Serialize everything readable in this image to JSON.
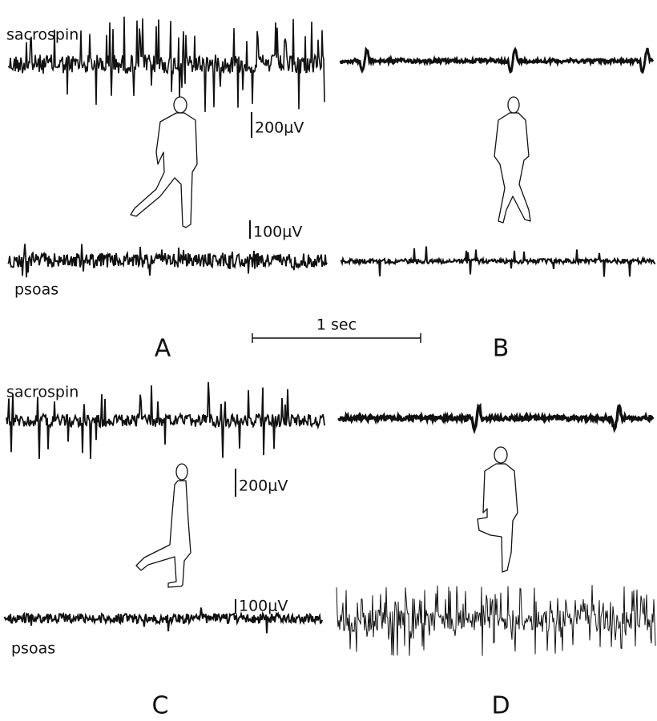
{
  "panels": [
    {
      "label": "A",
      "top_muscle": "sacrospin",
      "bottom_muscle": "psoas",
      "scale_top": "200μV",
      "scale_bottom": "100μV"
    },
    {
      "label": "B"
    },
    {
      "label": "C",
      "top_muscle": "sacrospin",
      "bottom_muscle": "psoas",
      "scale_top": "200μV",
      "scale_bottom": "100μV"
    },
    {
      "label": "D"
    }
  ],
  "time_scale": "1 sec"
}
